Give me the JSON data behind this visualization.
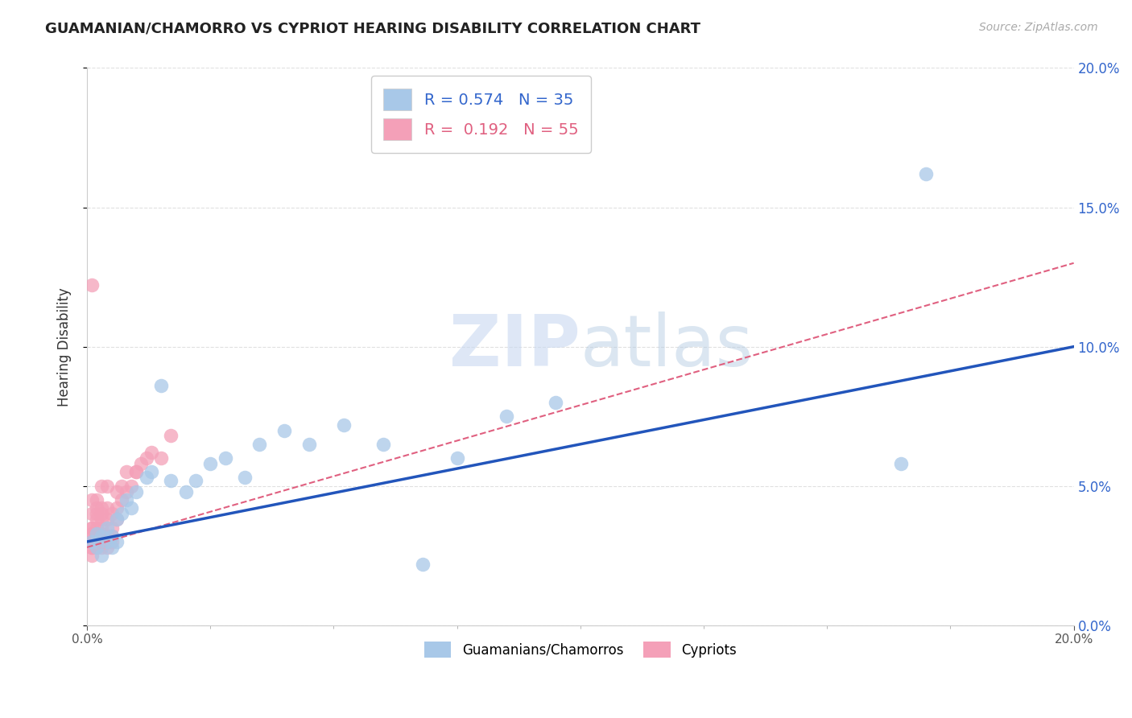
{
  "title": "GUAMANIAN/CHAMORRO VS CYPRIOT HEARING DISABILITY CORRELATION CHART",
  "source_text": "Source: ZipAtlas.com",
  "ylabel": "Hearing Disability",
  "xlim": [
    0,
    0.2
  ],
  "ylim": [
    0,
    0.2
  ],
  "guamanian_R": 0.574,
  "guamanian_N": 35,
  "cypriot_R": 0.192,
  "cypriot_N": 55,
  "guamanian_color": "#a8c8e8",
  "cypriot_color": "#f4a0b8",
  "guamanian_line_color": "#2255bb",
  "cypriot_line_color": "#e06080",
  "background_color": "#ffffff",
  "grid_color": "#e0e0e0",
  "watermark_zip": "ZIP",
  "watermark_atlas": "atlas",
  "guamanian_x": [
    0.001,
    0.002,
    0.002,
    0.003,
    0.003,
    0.004,
    0.004,
    0.005,
    0.005,
    0.006,
    0.006,
    0.007,
    0.008,
    0.009,
    0.01,
    0.012,
    0.013,
    0.015,
    0.017,
    0.02,
    0.022,
    0.025,
    0.028,
    0.032,
    0.035,
    0.04,
    0.045,
    0.052,
    0.06,
    0.068,
    0.075,
    0.085,
    0.095,
    0.165,
    0.17
  ],
  "guamanian_y": [
    0.03,
    0.028,
    0.033,
    0.025,
    0.032,
    0.03,
    0.035,
    0.028,
    0.032,
    0.03,
    0.038,
    0.04,
    0.045,
    0.042,
    0.048,
    0.053,
    0.055,
    0.086,
    0.052,
    0.048,
    0.052,
    0.058,
    0.06,
    0.053,
    0.065,
    0.07,
    0.065,
    0.072,
    0.065,
    0.022,
    0.06,
    0.075,
    0.08,
    0.058,
    0.162
  ],
  "cypriot_x": [
    0.001,
    0.001,
    0.001,
    0.001,
    0.001,
    0.001,
    0.001,
    0.001,
    0.001,
    0.001,
    0.001,
    0.002,
    0.002,
    0.002,
    0.002,
    0.002,
    0.002,
    0.002,
    0.002,
    0.002,
    0.003,
    0.003,
    0.003,
    0.003,
    0.003,
    0.003,
    0.003,
    0.003,
    0.003,
    0.004,
    0.004,
    0.004,
    0.004,
    0.004,
    0.004,
    0.005,
    0.005,
    0.005,
    0.005,
    0.006,
    0.006,
    0.006,
    0.007,
    0.007,
    0.008,
    0.008,
    0.009,
    0.01,
    0.011,
    0.012,
    0.013,
    0.015,
    0.017,
    0.01,
    0.001
  ],
  "cypriot_y": [
    0.03,
    0.028,
    0.032,
    0.025,
    0.035,
    0.04,
    0.028,
    0.033,
    0.03,
    0.045,
    0.035,
    0.03,
    0.032,
    0.028,
    0.04,
    0.042,
    0.038,
    0.03,
    0.035,
    0.045,
    0.03,
    0.028,
    0.033,
    0.04,
    0.042,
    0.035,
    0.038,
    0.032,
    0.05,
    0.03,
    0.032,
    0.038,
    0.042,
    0.028,
    0.05,
    0.032,
    0.035,
    0.03,
    0.04,
    0.042,
    0.048,
    0.038,
    0.05,
    0.045,
    0.048,
    0.055,
    0.05,
    0.055,
    0.058,
    0.06,
    0.062,
    0.06,
    0.068,
    0.055,
    0.122
  ]
}
